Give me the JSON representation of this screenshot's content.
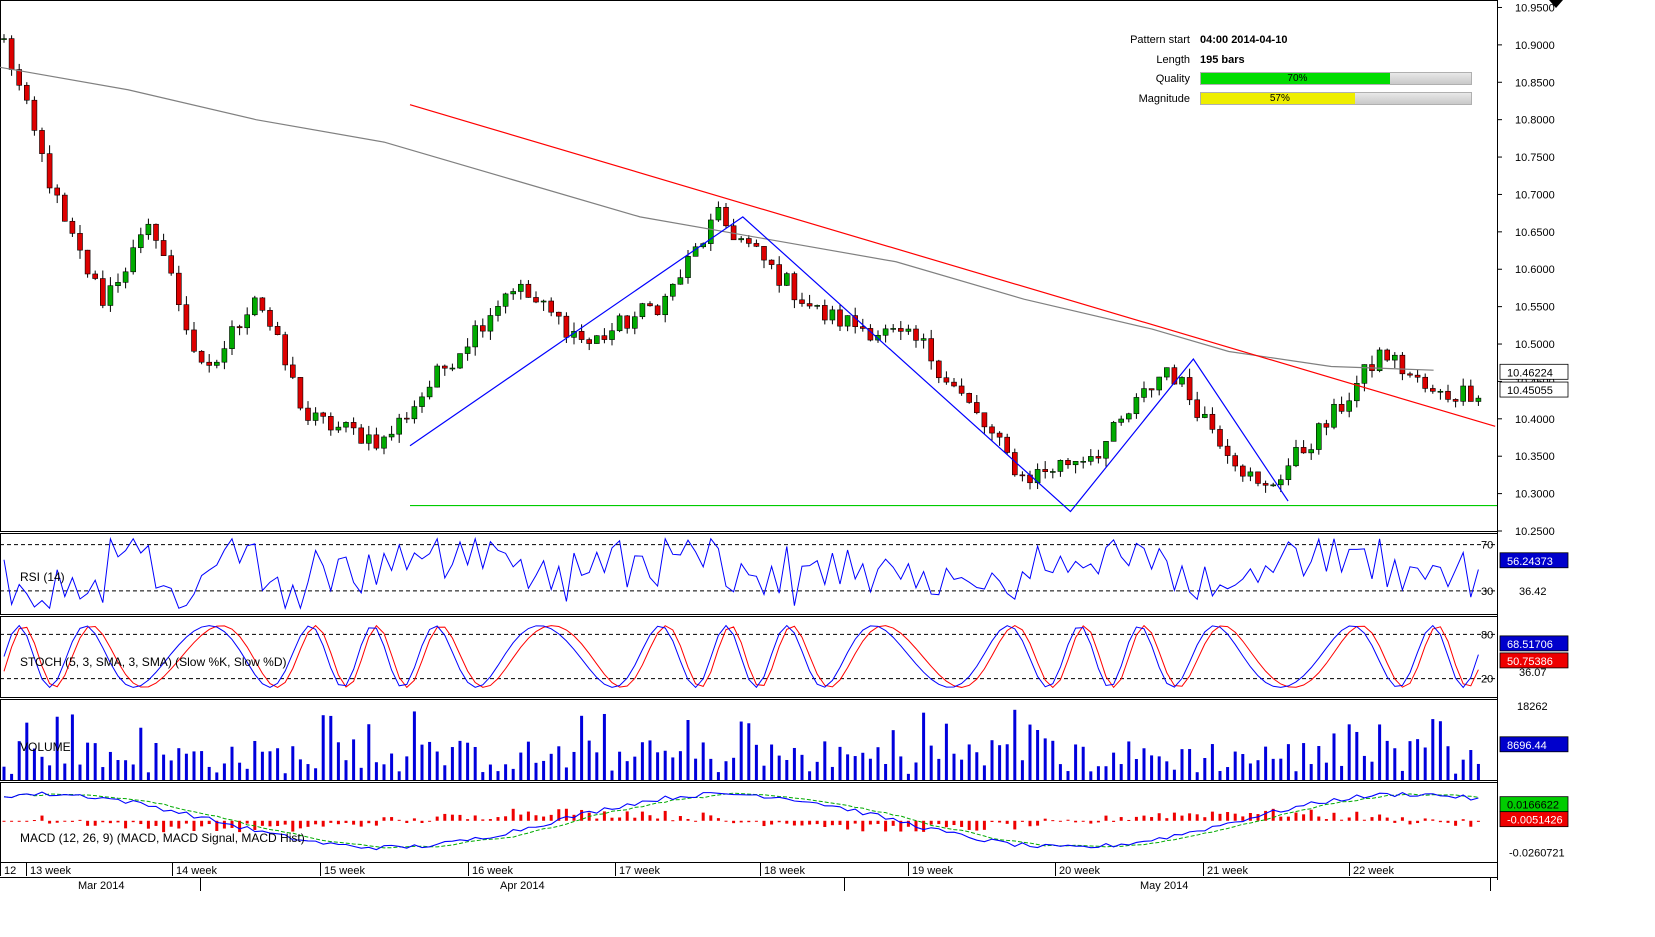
{
  "pattern_info": {
    "pattern_start_label": "Pattern start",
    "pattern_start_value": "04:00 2014-04-10",
    "length_label": "Length",
    "length_value": "195 bars",
    "quality_label": "Quality",
    "quality_value": "70%",
    "quality_fraction": 0.7,
    "quality_color": "#00dd00",
    "magnitude_label": "Magnitude",
    "magnitude_value": "57%",
    "magnitude_fraction": 0.57,
    "magnitude_color": "#eeee00"
  },
  "chart_data": [
    {
      "type": "candlestick",
      "panel": "price",
      "ylim": [
        10.25,
        10.96
      ],
      "y_ticks": [
        "10.9500",
        "10.9000",
        "10.8500",
        "10.8000",
        "10.7500",
        "10.7000",
        "10.6500",
        "10.6000",
        "10.5500",
        "10.5000",
        "10.4500",
        "10.4000",
        "10.3500",
        "10.3000",
        "10.2500"
      ],
      "last_price_label": "10.45055",
      "ma_label": "10.46224",
      "colors": {
        "bull": "#00aa00",
        "bear": "#dd0000",
        "ma": "#808080",
        "resistance": "#ff0000",
        "pattern": "#0000ff",
        "support": "#00cc00"
      },
      "ma_points": [
        [
          0,
          10.87
        ],
        [
          50,
          10.84
        ],
        [
          100,
          10.8
        ],
        [
          150,
          10.77
        ],
        [
          200,
          10.72
        ],
        [
          250,
          10.67
        ],
        [
          300,
          10.64
        ],
        [
          350,
          10.61
        ],
        [
          400,
          10.56
        ],
        [
          450,
          10.52
        ],
        [
          480,
          10.49
        ],
        [
          520,
          10.47
        ],
        [
          560,
          10.465
        ]
      ],
      "resistance_line": [
        [
          150,
          10.82
        ],
        [
          570,
          10.39
        ]
      ],
      "support_line": [
        [
          150,
          10.284
        ],
        [
          560,
          10.284
        ]
      ],
      "pattern_zigzag": [
        [
          150,
          10.364
        ],
        [
          280,
          10.67
        ],
        [
          408,
          10.276
        ],
        [
          456,
          10.48
        ],
        [
          493,
          10.29
        ]
      ],
      "candles_count": 195
    },
    {
      "type": "line",
      "panel": "rsi",
      "title": "RSI (14)",
      "ylim": [
        10,
        80
      ],
      "levels": [
        "70",
        "30"
      ],
      "value_label": "56.24373",
      "extra_label": "36.42",
      "color": "#0000ff"
    },
    {
      "type": "line",
      "panel": "stoch",
      "title": "STOCH (5, 3, SMA, 3, SMA) (Slow %K, Slow %D)",
      "ylim": [
        -5,
        105
      ],
      "levels": [
        "80",
        "20"
      ],
      "k_label": "68.51706",
      "d_label": "50.75386",
      "extra_label": "36.07",
      "k_color": "#0000ff",
      "d_color": "#ff0000"
    },
    {
      "type": "bar",
      "panel": "volume",
      "title": "VOLUME",
      "ylim": [
        0,
        20000
      ],
      "y_ticks": [
        "18262"
      ],
      "value_label": "8696.44",
      "color": "#0000dd"
    },
    {
      "type": "line",
      "panel": "macd",
      "title": "MACD (12, 26, 9) (MACD, MACD Signal, MACD Hist)",
      "ylim": [
        -0.034,
        0.032
      ],
      "macd_label": "0.0166622",
      "signal_label": "-0.0051426",
      "extra_label": "-0.0260721",
      "macd_color": "#0000ff",
      "signal_color": "#00aa00",
      "hist_color": "#ee0000"
    }
  ],
  "x_axis": {
    "weeks": [
      "12",
      "13 week",
      "14 week",
      "15 week",
      "16 week",
      "17 week",
      "18 week",
      "19 week",
      "20 week",
      "21 week",
      "22 week"
    ],
    "months": [
      "Mar 2014",
      "Apr 2014",
      "May 2014"
    ]
  }
}
